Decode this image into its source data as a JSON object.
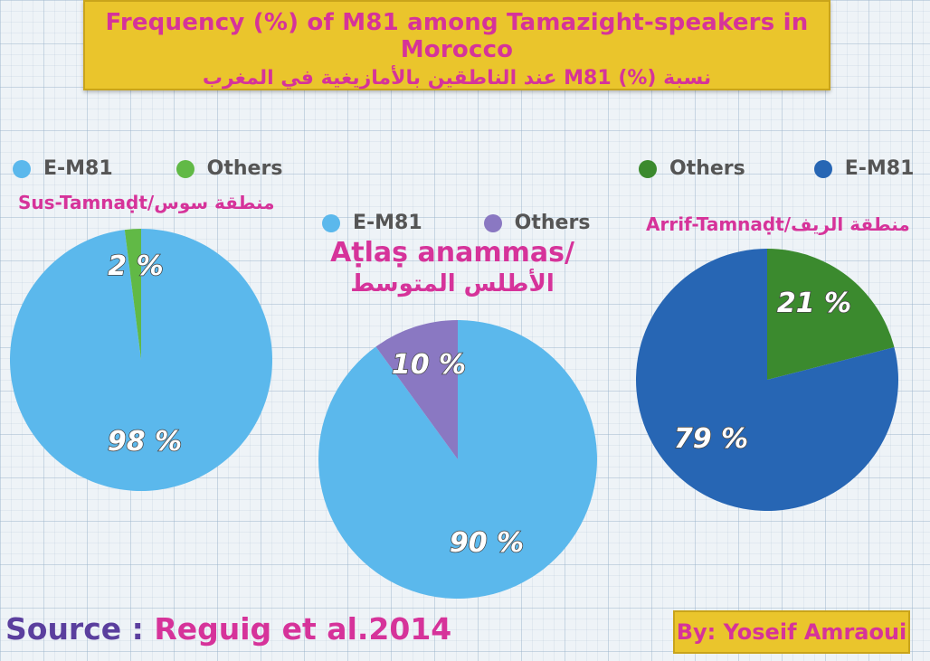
{
  "header": {
    "title_en": "Frequency (%) of M81 among Tamazight-speakers in Morocco",
    "title_ar": "نسبة (%) M81 عند الناطقين بالأمازيغية في المغرب"
  },
  "colors": {
    "title_bg": "#eac52c",
    "text_pink": "#d6339a",
    "source_purple": "#5b3f9e",
    "light_blue": "#5bb8ec",
    "light_green": "#61b946",
    "lavender": "#8a78c2",
    "dark_green": "#3b8a2e",
    "dark_blue": "#2766b4"
  },
  "chart_data": [
    {
      "type": "pie",
      "title": "Sus-Tamnaḍt/منطقة سوس",
      "legend": [
        "E-M81",
        "Others"
      ],
      "slices": [
        {
          "name": "E-M81",
          "value": 98,
          "label": "98 %",
          "color": "#5bb8ec"
        },
        {
          "name": "Others",
          "value": 2,
          "label": "2 %",
          "color": "#61b946"
        }
      ]
    },
    {
      "type": "pie",
      "title": "Aṭlaṣ anammas/ الأطلس المتوسط",
      "legend": [
        "E-M81",
        "Others"
      ],
      "slices": [
        {
          "name": "E-M81",
          "value": 90,
          "label": "90 %",
          "color": "#5bb8ec"
        },
        {
          "name": "Others",
          "value": 10,
          "label": "10 %",
          "color": "#8a78c2"
        }
      ]
    },
    {
      "type": "pie",
      "title": "Arrif-Tamnaḍt/منطقة الريف",
      "legend": [
        "Others",
        "E-M81"
      ],
      "slices": [
        {
          "name": "Others",
          "value": 21,
          "label": "21 %",
          "color": "#3b8a2e"
        },
        {
          "name": "E-M81",
          "value": 79,
          "label": "79 %",
          "color": "#2766b4"
        }
      ]
    }
  ],
  "sus": {
    "region_label": "Sus-Tamnaḍt/منطقة سوس",
    "legend_1": "E-M81",
    "legend_2": "Others"
  },
  "atlas": {
    "region_line1": "Aṭlaṣ anammas/",
    "region_line2": "الأطلس المتوسط",
    "legend_1": "E-M81",
    "legend_2": "Others"
  },
  "rif": {
    "region_label": "Arrif-Tamnaḍt/منطقة الريف",
    "legend_1": "Others",
    "legend_2": "E-M81"
  },
  "footer": {
    "source_prefix": "Source : ",
    "source_ref": "Reguig et al.2014",
    "byline": "By: Yoseif Amraoui"
  }
}
